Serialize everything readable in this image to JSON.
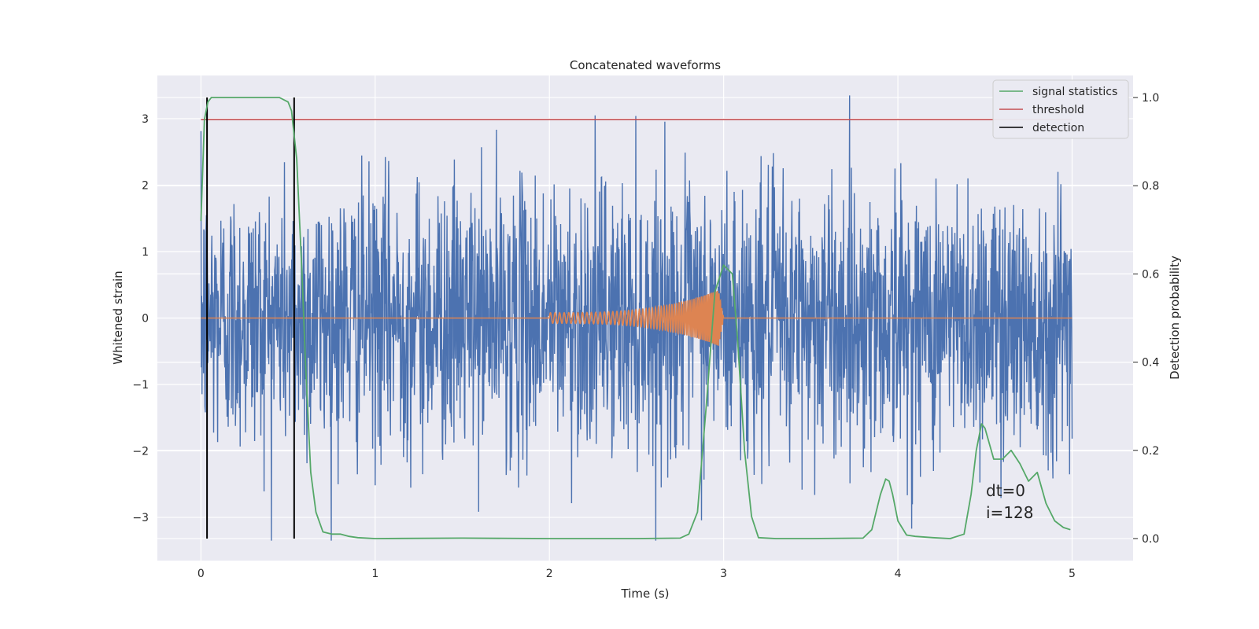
{
  "chart_data": {
    "type": "line",
    "title": "Concatenated waveforms",
    "xlabel": "Time (s)",
    "ylabel": "Whitened strain",
    "y2label": "Detection probability",
    "xlim": [
      -0.25,
      5.35
    ],
    "ylim": [
      -3.65,
      3.65
    ],
    "y2lim": [
      -0.05,
      1.05
    ],
    "xticks": [
      0,
      1,
      2,
      3,
      4,
      5
    ],
    "yticks": [
      -3,
      -2,
      -1,
      0,
      1,
      2,
      3
    ],
    "y2ticks": [
      0.0,
      0.2,
      0.4,
      0.6,
      0.8,
      1.0
    ],
    "xtick_labels": [
      "0",
      "1",
      "2",
      "3",
      "4",
      "5"
    ],
    "ytick_labels": [
      "−3",
      "−2",
      "−1",
      "0",
      "1",
      "2",
      "3"
    ],
    "y2tick_labels": [
      "0.0",
      "0.2",
      "0.4",
      "0.6",
      "0.8",
      "1.0"
    ],
    "grid": true,
    "legend_position": "top-right",
    "colors": {
      "strain": "#4c72b0",
      "template": "#dd8452",
      "signal_statistics": "#55a868",
      "threshold": "#c44e52",
      "detection": "#000000",
      "axes_bg": "#eaeaf2",
      "grid": "#ffffff"
    },
    "series": [
      {
        "name": "signal statistics",
        "axis": "right",
        "x": [
          0.0,
          0.02,
          0.04,
          0.06,
          0.08,
          0.12,
          0.2,
          0.3,
          0.4,
          0.45,
          0.5,
          0.52,
          0.55,
          0.58,
          0.6,
          0.63,
          0.66,
          0.7,
          0.75,
          0.8,
          0.85,
          0.9,
          1.0,
          1.5,
          2.0,
          2.5,
          2.75,
          2.8,
          2.85,
          2.9,
          2.95,
          3.0,
          3.05,
          3.08,
          3.12,
          3.16,
          3.2,
          3.3,
          3.5,
          3.8,
          3.85,
          3.9,
          3.93,
          3.95,
          3.97,
          4.0,
          4.05,
          4.1,
          4.2,
          4.3,
          4.38,
          4.42,
          4.45,
          4.48,
          4.5,
          4.55,
          4.6,
          4.65,
          4.7,
          4.75,
          4.8,
          4.85,
          4.9,
          4.95,
          4.99
        ],
        "values": [
          0.72,
          0.95,
          0.99,
          1.0,
          1.0,
          1.0,
          1.0,
          1.0,
          1.0,
          1.0,
          0.99,
          0.97,
          0.86,
          0.6,
          0.4,
          0.15,
          0.06,
          0.015,
          0.01,
          0.01,
          0.005,
          0.002,
          0.0,
          0.001,
          0.0,
          0.0,
          0.001,
          0.01,
          0.06,
          0.3,
          0.56,
          0.62,
          0.6,
          0.45,
          0.2,
          0.05,
          0.002,
          0.0,
          0.0,
          0.001,
          0.02,
          0.1,
          0.135,
          0.13,
          0.1,
          0.04,
          0.008,
          0.005,
          0.002,
          0.0,
          0.01,
          0.1,
          0.2,
          0.26,
          0.25,
          0.18,
          0.18,
          0.2,
          0.17,
          0.13,
          0.15,
          0.08,
          0.04,
          0.025,
          0.02
        ]
      },
      {
        "name": "threshold",
        "axis": "right",
        "x": [
          0.0,
          5.0
        ],
        "values": [
          0.95,
          0.95
        ]
      },
      {
        "name": "detection",
        "axis": "right",
        "type": "vlines",
        "x": [
          0.035,
          0.535
        ],
        "ymin": 0.0,
        "ymax": 1.0
      },
      {
        "name": "",
        "axis": "left",
        "description_kind": "noise",
        "x_range": [
          0.0,
          5.0
        ],
        "envelope_typical": 1.3,
        "peak_abs": 3.35
      },
      {
        "name": "",
        "axis": "left",
        "description_kind": "chirp",
        "x_range": [
          2.0,
          3.0
        ],
        "amplitude_start": 0.08,
        "amplitude_peak": 0.45
      }
    ],
    "annotations": [
      "dt=0",
      "i=128"
    ]
  }
}
